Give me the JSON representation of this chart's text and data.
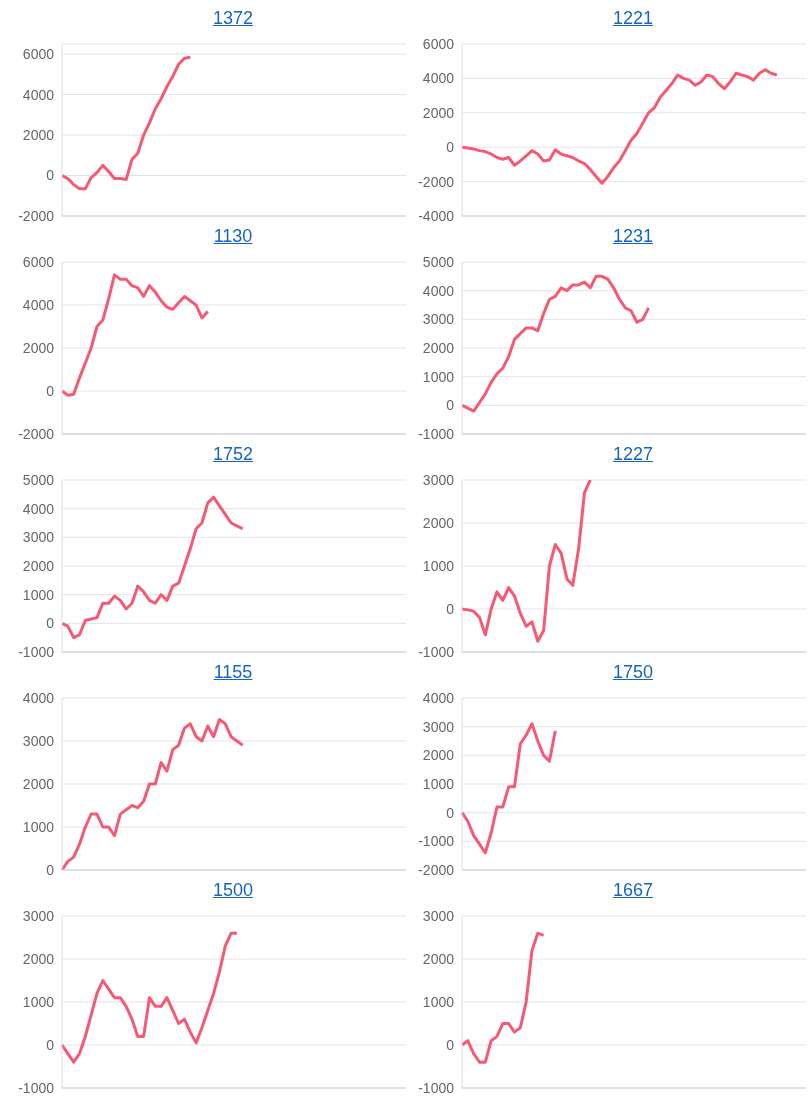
{
  "chart_data": [
    {
      "type": "line",
      "title": "1372",
      "categories": [
        null,
        null,
        null,
        null,
        null,
        null,
        null,
        null,
        null,
        null,
        null,
        null,
        null,
        null,
        null,
        null,
        null,
        null,
        null,
        null,
        null,
        null,
        null,
        null,
        null,
        null,
        null,
        null,
        null,
        null,
        null,
        null,
        null,
        null,
        null,
        null,
        null,
        null,
        null,
        null,
        null,
        null,
        null,
        null,
        null,
        null,
        null,
        null,
        null,
        null,
        null,
        null,
        null,
        null,
        null,
        null,
        null,
        null,
        null,
        null
      ],
      "series": [
        {
          "color": "#f45a74",
          "values": [
            0,
            -150,
            -450,
            -650,
            -650,
            -100,
            150,
            500,
            200,
            -150,
            -150,
            -200,
            800,
            1100,
            2000,
            2600,
            3300,
            3800,
            4400,
            4900,
            5500,
            5800,
            5850,
            null,
            null,
            null,
            null,
            null,
            null,
            null,
            null,
            null,
            null,
            null,
            null,
            null,
            null,
            null,
            null,
            null,
            null,
            null,
            null,
            null,
            null,
            null,
            null,
            null,
            null,
            null,
            null,
            null,
            null,
            null,
            null,
            null,
            null,
            null,
            null,
            null
          ]
        }
      ],
      "ylim": [
        -2000,
        6500
      ],
      "yticks": [
        -2000,
        0,
        2000,
        4000,
        6000
      ],
      "grid": "y",
      "tick_labels": "y",
      "marker": "none",
      "legend": false
    },
    {
      "type": "line",
      "title": "1221",
      "categories": [
        null,
        null,
        null,
        null,
        null,
        null,
        null,
        null,
        null,
        null,
        null,
        null,
        null,
        null,
        null,
        null,
        null,
        null,
        null,
        null,
        null,
        null,
        null,
        null,
        null,
        null,
        null,
        null,
        null,
        null,
        null,
        null,
        null,
        null,
        null,
        null,
        null,
        null,
        null,
        null,
        null,
        null,
        null,
        null,
        null,
        null,
        null,
        null,
        null,
        null,
        null,
        null,
        null,
        null,
        null,
        null,
        null,
        null,
        null,
        null
      ],
      "series": [
        {
          "color": "#f45a74",
          "values": [
            0,
            -50,
            -100,
            -200,
            -250,
            -400,
            -600,
            -700,
            -600,
            -1050,
            -800,
            -500,
            -200,
            -400,
            -800,
            -750,
            -150,
            -400,
            -500,
            -600,
            -800,
            -950,
            -1300,
            -1700,
            -2100,
            -1700,
            -1200,
            -800,
            -200,
            400,
            800,
            1400,
            2000,
            2300,
            2900,
            3300,
            3700,
            4200,
            4000,
            3900,
            3600,
            3800,
            4200,
            4100,
            3700,
            3400,
            3800,
            4300,
            4200,
            4100,
            3900,
            4300,
            4500,
            4300,
            4200,
            null,
            null,
            null,
            null,
            null
          ]
        }
      ],
      "ylim": [
        -4000,
        6000
      ],
      "yticks": [
        -4000,
        -2000,
        0,
        2000,
        4000,
        6000
      ],
      "grid": "y",
      "tick_labels": "y",
      "marker": "none",
      "legend": false
    },
    {
      "type": "line",
      "title": "1130",
      "categories": [
        null,
        null,
        null,
        null,
        null,
        null,
        null,
        null,
        null,
        null,
        null,
        null,
        null,
        null,
        null,
        null,
        null,
        null,
        null,
        null,
        null,
        null,
        null,
        null,
        null,
        null,
        null,
        null,
        null,
        null,
        null,
        null,
        null,
        null,
        null,
        null,
        null,
        null,
        null,
        null,
        null,
        null,
        null,
        null,
        null,
        null,
        null,
        null,
        null,
        null,
        null,
        null,
        null,
        null,
        null,
        null,
        null,
        null,
        null,
        null
      ],
      "series": [
        {
          "color": "#f45a74",
          "values": [
            0,
            -200,
            -150,
            600,
            1300,
            2000,
            3000,
            3300,
            4300,
            5400,
            5200,
            5200,
            4900,
            4800,
            4400,
            4900,
            4600,
            4200,
            3900,
            3800,
            4100,
            4400,
            4200,
            4000,
            3400,
            3700,
            null,
            null,
            null,
            null,
            null,
            null,
            null,
            null,
            null,
            null,
            null,
            null,
            null,
            null,
            null,
            null,
            null,
            null,
            null,
            null,
            null,
            null,
            null,
            null,
            null,
            null,
            null,
            null,
            null,
            null,
            null,
            null,
            null,
            null
          ]
        }
      ],
      "ylim": [
        -2000,
        6000
      ],
      "yticks": [
        -2000,
        0,
        2000,
        4000,
        6000
      ],
      "grid": "y",
      "tick_labels": "y",
      "marker": "none",
      "legend": false
    },
    {
      "type": "line",
      "title": "1231",
      "categories": [
        null,
        null,
        null,
        null,
        null,
        null,
        null,
        null,
        null,
        null,
        null,
        null,
        null,
        null,
        null,
        null,
        null,
        null,
        null,
        null,
        null,
        null,
        null,
        null,
        null,
        null,
        null,
        null,
        null,
        null,
        null,
        null,
        null,
        null,
        null,
        null,
        null,
        null,
        null,
        null,
        null,
        null,
        null,
        null,
        null,
        null,
        null,
        null,
        null,
        null,
        null,
        null,
        null,
        null,
        null,
        null,
        null,
        null,
        null,
        null
      ],
      "series": [
        {
          "color": "#f45a74",
          "values": [
            0,
            -100,
            -200,
            100,
            400,
            800,
            1100,
            1300,
            1700,
            2300,
            2500,
            2700,
            2700,
            2600,
            3200,
            3700,
            3800,
            4100,
            4000,
            4200,
            4200,
            4300,
            4100,
            4500,
            4500,
            4400,
            4100,
            3700,
            3400,
            3300,
            2900,
            3000,
            3400,
            null,
            null,
            null,
            null,
            null,
            null,
            null,
            null,
            null,
            null,
            null,
            null,
            null,
            null,
            null,
            null,
            null,
            null,
            null,
            null,
            null,
            null,
            null,
            null,
            null,
            null,
            null
          ]
        }
      ],
      "ylim": [
        -1000,
        5000
      ],
      "yticks": [
        -1000,
        0,
        1000,
        2000,
        3000,
        4000,
        5000
      ],
      "grid": "y",
      "tick_labels": "y",
      "marker": "none",
      "legend": false
    },
    {
      "type": "line",
      "title": "1752",
      "categories": [
        null,
        null,
        null,
        null,
        null,
        null,
        null,
        null,
        null,
        null,
        null,
        null,
        null,
        null,
        null,
        null,
        null,
        null,
        null,
        null,
        null,
        null,
        null,
        null,
        null,
        null,
        null,
        null,
        null,
        null,
        null,
        null,
        null,
        null,
        null,
        null,
        null,
        null,
        null,
        null,
        null,
        null,
        null,
        null,
        null,
        null,
        null,
        null,
        null,
        null,
        null,
        null,
        null,
        null,
        null,
        null,
        null,
        null,
        null,
        null
      ],
      "series": [
        {
          "color": "#f45a74",
          "values": [
            0,
            -100,
            -500,
            -400,
            100,
            150,
            200,
            700,
            700,
            950,
            800,
            500,
            700,
            1300,
            1100,
            800,
            700,
            1000,
            800,
            1300,
            1400,
            2000,
            2600,
            3300,
            3500,
            4200,
            4400,
            4100,
            3800,
            3500,
            3400,
            3300,
            null,
            null,
            null,
            null,
            null,
            null,
            null,
            null,
            null,
            null,
            null,
            null,
            null,
            null,
            null,
            null,
            null,
            null,
            null,
            null,
            null,
            null,
            null,
            null,
            null,
            null,
            null,
            null
          ]
        }
      ],
      "ylim": [
        -1000,
        5000
      ],
      "yticks": [
        -1000,
        0,
        1000,
        2000,
        3000,
        4000,
        5000
      ],
      "grid": "y",
      "tick_labels": "y",
      "marker": "none",
      "legend": false
    },
    {
      "type": "line",
      "title": "1227",
      "categories": [
        null,
        null,
        null,
        null,
        null,
        null,
        null,
        null,
        null,
        null,
        null,
        null,
        null,
        null,
        null,
        null,
        null,
        null,
        null,
        null,
        null,
        null,
        null,
        null,
        null,
        null,
        null,
        null,
        null,
        null,
        null,
        null,
        null,
        null,
        null,
        null,
        null,
        null,
        null,
        null,
        null,
        null,
        null,
        null,
        null,
        null,
        null,
        null,
        null,
        null,
        null,
        null,
        null,
        null,
        null,
        null,
        null,
        null,
        null,
        null
      ],
      "series": [
        {
          "color": "#f45a74",
          "values": [
            0,
            -20,
            -50,
            -200,
            -600,
            0,
            400,
            200,
            500,
            300,
            -100,
            -400,
            -300,
            -750,
            -500,
            1000,
            1500,
            1300,
            700,
            550,
            1400,
            2700,
            3000,
            null,
            null,
            null,
            null,
            null,
            null,
            null,
            null,
            null,
            null,
            null,
            null,
            null,
            null,
            null,
            null,
            null,
            null,
            null,
            null,
            null,
            null,
            null,
            null,
            null,
            null,
            null,
            null,
            null,
            null,
            null,
            null,
            null,
            null,
            null,
            null,
            null
          ]
        }
      ],
      "ylim": [
        -1000,
        3000
      ],
      "yticks": [
        -1000,
        0,
        1000,
        2000,
        3000
      ],
      "grid": "y",
      "tick_labels": "y",
      "marker": "none",
      "legend": false
    },
    {
      "type": "line",
      "title": "1155",
      "categories": [
        null,
        null,
        null,
        null,
        null,
        null,
        null,
        null,
        null,
        null,
        null,
        null,
        null,
        null,
        null,
        null,
        null,
        null,
        null,
        null,
        null,
        null,
        null,
        null,
        null,
        null,
        null,
        null,
        null,
        null,
        null,
        null,
        null,
        null,
        null,
        null,
        null,
        null,
        null,
        null,
        null,
        null,
        null,
        null,
        null,
        null,
        null,
        null,
        null,
        null,
        null,
        null,
        null,
        null,
        null,
        null,
        null,
        null,
        null,
        null
      ],
      "series": [
        {
          "color": "#f45a74",
          "values": [
            0,
            200,
            300,
            600,
            1000,
            1300,
            1300,
            1000,
            1000,
            800,
            1300,
            1400,
            1500,
            1450,
            1600,
            2000,
            2000,
            2500,
            2300,
            2800,
            2900,
            3300,
            3400,
            3100,
            3000,
            3350,
            3100,
            3500,
            3400,
            3100,
            3000,
            2900,
            null,
            null,
            null,
            null,
            null,
            null,
            null,
            null,
            null,
            null,
            null,
            null,
            null,
            null,
            null,
            null,
            null,
            null,
            null,
            null,
            null,
            null,
            null,
            null,
            null,
            null,
            null,
            null
          ]
        }
      ],
      "ylim": [
        0,
        4000
      ],
      "yticks": [
        0,
        1000,
        2000,
        3000,
        4000
      ],
      "grid": "y",
      "tick_labels": "y",
      "marker": "none",
      "legend": false
    },
    {
      "type": "line",
      "title": "1750",
      "categories": [
        null,
        null,
        null,
        null,
        null,
        null,
        null,
        null,
        null,
        null,
        null,
        null,
        null,
        null,
        null,
        null,
        null,
        null,
        null,
        null,
        null,
        null,
        null,
        null,
        null,
        null,
        null,
        null,
        null,
        null,
        null,
        null,
        null,
        null,
        null,
        null,
        null,
        null,
        null,
        null,
        null,
        null,
        null,
        null,
        null,
        null,
        null,
        null,
        null,
        null,
        null,
        null,
        null,
        null,
        null,
        null,
        null,
        null,
        null,
        null
      ],
      "series": [
        {
          "color": "#f45a74",
          "values": [
            0,
            -300,
            -800,
            -1100,
            -1400,
            -700,
            200,
            200,
            900,
            900,
            2400,
            2700,
            3100,
            2500,
            2000,
            1800,
            2850,
            null,
            null,
            null,
            null,
            null,
            null,
            null,
            null,
            null,
            null,
            null,
            null,
            null,
            null,
            null,
            null,
            null,
            null,
            null,
            null,
            null,
            null,
            null,
            null,
            null,
            null,
            null,
            null,
            null,
            null,
            null,
            null,
            null,
            null,
            null,
            null,
            null,
            null,
            null,
            null,
            null,
            null,
            null
          ]
        }
      ],
      "ylim": [
        -2000,
        4000
      ],
      "yticks": [
        -2000,
        -1000,
        0,
        1000,
        2000,
        3000,
        4000
      ],
      "grid": "y",
      "tick_labels": "y",
      "marker": "none",
      "legend": false
    },
    {
      "type": "line",
      "title": "1500",
      "categories": [
        null,
        null,
        null,
        null,
        null,
        null,
        null,
        null,
        null,
        null,
        null,
        null,
        null,
        null,
        null,
        null,
        null,
        null,
        null,
        null,
        null,
        null,
        null,
        null,
        null,
        null,
        null,
        null,
        null,
        null,
        null,
        null,
        null,
        null,
        null,
        null,
        null,
        null,
        null,
        null,
        null,
        null,
        null,
        null,
        null,
        null,
        null,
        null,
        null,
        null,
        null,
        null,
        null,
        null,
        null,
        null,
        null,
        null,
        null,
        null
      ],
      "series": [
        {
          "color": "#f45a74",
          "values": [
            0,
            -200,
            -400,
            -200,
            200,
            700,
            1200,
            1500,
            1300,
            1100,
            1100,
            900,
            600,
            200,
            200,
            1100,
            900,
            900,
            1100,
            800,
            500,
            600,
            300,
            50,
            400,
            800,
            1200,
            1700,
            2300,
            2600,
            2600,
            null,
            null,
            null,
            null,
            null,
            null,
            null,
            null,
            null,
            null,
            null,
            null,
            null,
            null,
            null,
            null,
            null,
            null,
            null,
            null,
            null,
            null,
            null,
            null,
            null,
            null,
            null,
            null,
            null
          ]
        }
      ],
      "ylim": [
        -1000,
        3000
      ],
      "yticks": [
        -1000,
        0,
        1000,
        2000,
        3000
      ],
      "grid": "y",
      "tick_labels": "y",
      "marker": "none",
      "legend": false
    },
    {
      "type": "line",
      "title": "1667",
      "categories": [
        null,
        null,
        null,
        null,
        null,
        null,
        null,
        null,
        null,
        null,
        null,
        null,
        null,
        null,
        null,
        null,
        null,
        null,
        null,
        null,
        null,
        null,
        null,
        null,
        null,
        null,
        null,
        null,
        null,
        null,
        null,
        null,
        null,
        null,
        null,
        null,
        null,
        null,
        null,
        null,
        null,
        null,
        null,
        null,
        null,
        null,
        null,
        null,
        null,
        null,
        null,
        null,
        null,
        null,
        null,
        null,
        null,
        null,
        null,
        null
      ],
      "series": [
        {
          "color": "#f45a74",
          "values": [
            0,
            100,
            -200,
            -400,
            -400,
            100,
            200,
            500,
            500,
            300,
            400,
            1000,
            2200,
            2600,
            2550,
            null,
            null,
            null,
            null,
            null,
            null,
            null,
            null,
            null,
            null,
            null,
            null,
            null,
            null,
            null,
            null,
            null,
            null,
            null,
            null,
            null,
            null,
            null,
            null,
            null,
            null,
            null,
            null,
            null,
            null,
            null,
            null,
            null,
            null,
            null,
            null,
            null,
            null,
            null,
            null,
            null,
            null,
            null,
            null,
            null
          ]
        }
      ],
      "ylim": [
        -1000,
        3000
      ],
      "yticks": [
        -1000,
        0,
        1000,
        2000,
        3000
      ],
      "grid": "y",
      "tick_labels": "y",
      "marker": "none",
      "legend": false
    }
  ]
}
